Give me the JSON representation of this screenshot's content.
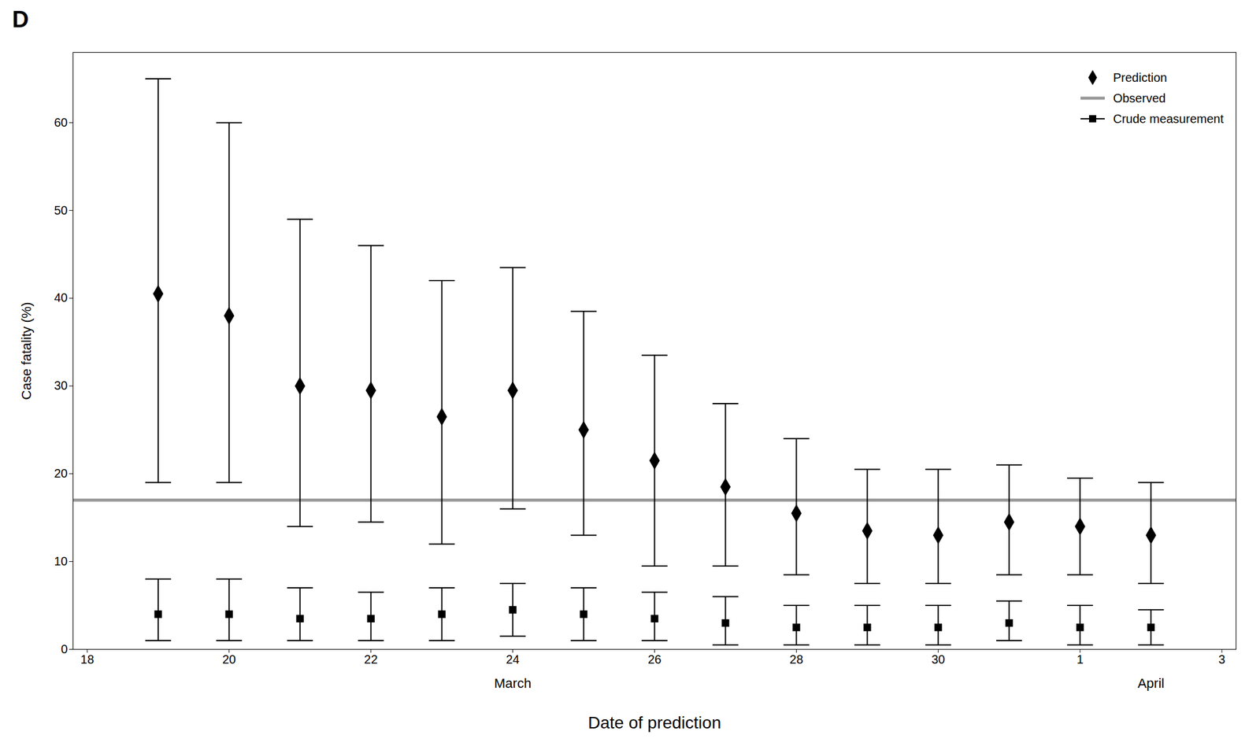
{
  "chart_data": {
    "type": "errorbar",
    "title": "D",
    "xlabel": "Date of prediction",
    "ylabel": "Case fatality (%)",
    "xlim": [
      17.8,
      34.2
    ],
    "ylim": [
      0,
      68
    ],
    "xticks": [
      18,
      20,
      22,
      24,
      26,
      28,
      30,
      {
        "value": 32,
        "label": "1"
      },
      {
        "value": 34,
        "label": "3"
      }
    ],
    "yticks": [
      0,
      10,
      20,
      30,
      40,
      50,
      60
    ],
    "grid": false,
    "legend": "upper right",
    "annotations": [
      {
        "text": "March",
        "x": 24.0
      },
      {
        "text": "April",
        "x": 33.0
      }
    ],
    "series": [
      {
        "name": "Prediction",
        "type": "scatter",
        "marker": "diamond",
        "color": "#000000",
        "x": [
          19,
          20,
          21,
          22,
          23,
          24,
          25,
          26,
          27,
          28,
          29,
          30,
          31,
          32,
          33
        ],
        "values": [
          40.5,
          38.0,
          30.0,
          29.5,
          26.5,
          29.5,
          25.0,
          21.5,
          18.5,
          15.5,
          13.5,
          13.0,
          14.5,
          14.0,
          13.0
        ],
        "error_low": [
          19.0,
          19.0,
          14.0,
          14.5,
          12.0,
          16.0,
          13.0,
          9.5,
          9.5,
          8.5,
          7.5,
          7.5,
          8.5,
          8.5,
          7.5
        ],
        "error_high": [
          65.0,
          60.0,
          49.0,
          46.0,
          42.0,
          43.5,
          38.5,
          33.5,
          28.0,
          24.0,
          20.5,
          20.5,
          21.0,
          19.5,
          19.0
        ]
      },
      {
        "name": "Observed",
        "type": "hline",
        "color": "#999999",
        "values": [
          17.0
        ]
      },
      {
        "name": "Crude measurement",
        "type": "scatter",
        "marker": "square",
        "color": "#000000",
        "x": [
          19,
          20,
          21,
          22,
          23,
          24,
          25,
          26,
          27,
          28,
          29,
          30,
          31,
          32,
          33
        ],
        "values": [
          4.0,
          4.0,
          3.5,
          3.5,
          4.0,
          4.5,
          4.0,
          3.5,
          3.0,
          2.5,
          2.5,
          2.5,
          3.0,
          2.5,
          2.5
        ],
        "error_low": [
          1.0,
          1.0,
          1.0,
          1.0,
          1.0,
          1.5,
          1.0,
          1.0,
          0.5,
          0.5,
          0.5,
          0.5,
          1.0,
          0.5,
          0.5
        ],
        "error_high": [
          8.0,
          8.0,
          7.0,
          6.5,
          7.0,
          7.5,
          7.0,
          6.5,
          6.0,
          5.0,
          5.0,
          5.0,
          5.5,
          5.0,
          4.5
        ]
      }
    ]
  }
}
